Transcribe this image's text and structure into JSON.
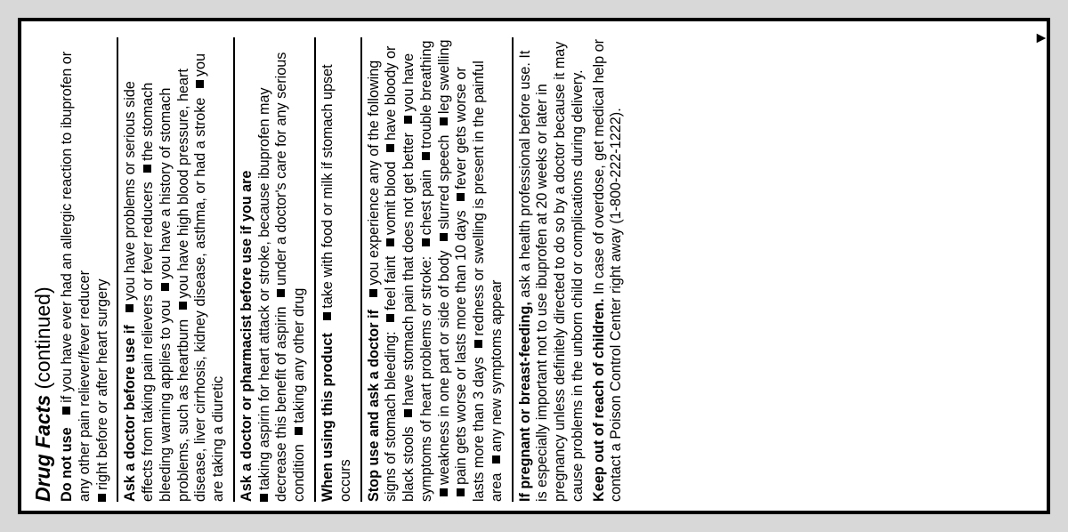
{
  "heading_italic": "Drug Facts",
  "heading_cont": " (continued)",
  "sec1_lead": "Do not use",
  "sec1_b1": "if you have ever had an allergic reaction to ibuprofen or any other pain reliever/fever reducer",
  "sec1_b2": "right before or after heart surgery",
  "sec2_lead": "Ask a doctor before use if",
  "sec2_b1": "you have problems or serious side effects from taking pain relievers or fever reducers",
  "sec2_b2": "the stomach bleeding warning applies to you",
  "sec2_b3": "you have a history of stomach problems, such as heartburn",
  "sec2_b4": "you have high blood pressure, heart disease, liver cirrhosis, kidney disease, asthma, or had a stroke",
  "sec2_b5": "you are taking a diuretic",
  "sec3_lead": "Ask a doctor or pharmacist before use if you are",
  "sec3_b1": "taking aspirin for heart attack or stroke, because ibuprofen may decrease this benefit of aspirin",
  "sec3_b2": "under a doctor's care for any serious condition",
  "sec3_b3": "taking any other drug",
  "sec4_lead": "When using this product",
  "sec4_b1": "take with food or milk if stomach upset occurs",
  "sec5_lead": "Stop use and ask a doctor if",
  "sec5_b1": "you experience any of the following signs of stomach bleeding:",
  "sec5_b2": "feel faint",
  "sec5_b3": "vomit blood",
  "sec5_b4": "have bloody or black stools",
  "sec5_b5": "have stomach pain that does not get better",
  "sec5_b6": "you have symptoms of heart problems or stroke:",
  "sec5_b7": "chest pain",
  "sec5_b8": "trouble breathing",
  "sec5_b9": "weakness in one part or side of body",
  "sec5_b10": "slurred speech",
  "sec5_b11": "leg swelling",
  "sec5_b12": "pain gets worse or lasts more than 10 days",
  "sec5_b13": "fever gets worse or lasts more than 3 days",
  "sec5_b14": "redness or swelling is present in the painful area",
  "sec5_b15": "any new symptoms appear",
  "sec6_lead": "If pregnant or breast-feeding,",
  "sec6_text": " ask a health professional before use. It is especially important not to use ibuprofen at 20 weeks or later in pregnancy unless definitely directed to do so by a doctor because it may cause problems in the unborn child or complications during delivery.",
  "sec7_lead": "Keep out of reach of children.",
  "sec7_text": " In case of overdose, get medical help or contact a Poison Control Center right away (1-800-222-1222).",
  "arrow": "▼"
}
